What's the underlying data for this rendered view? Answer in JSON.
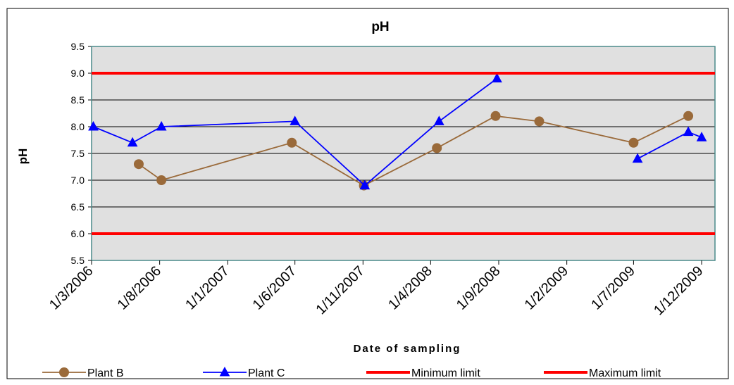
{
  "chart_data": {
    "type": "line",
    "title": "pH",
    "xlabel": "Date of sampling",
    "ylabel": "pH",
    "ylim": [
      5.5,
      9.5
    ],
    "yticks": [
      "5.5",
      "6.0",
      "6.5",
      "7.0",
      "7.5",
      "8.0",
      "8.5",
      "9.0",
      "9.5"
    ],
    "xticks": [
      {
        "label": "1/3/2006",
        "date": "2006-03-01"
      },
      {
        "label": "1/8/2006",
        "date": "2006-08-01"
      },
      {
        "label": "1/1/2007",
        "date": "2007-01-01"
      },
      {
        "label": "1/6/2007",
        "date": "2007-06-01"
      },
      {
        "label": "1/11/2007",
        "date": "2007-11-01"
      },
      {
        "label": "1/4/2008",
        "date": "2008-04-01"
      },
      {
        "label": "1/9/2008",
        "date": "2008-09-01"
      },
      {
        "label": "1/2/2009",
        "date": "2009-02-01"
      },
      {
        "label": "1/7/2009",
        "date": "2009-07-01"
      },
      {
        "label": "1/12/2009",
        "date": "2009-12-01"
      }
    ],
    "xlim": [
      "2006-03-01",
      "2009-12-31"
    ],
    "grid": true,
    "legend_position": "bottom",
    "plot_background": "#e0e0e0",
    "series": [
      {
        "name": "Plant B",
        "color": "#9a6a3a",
        "marker": "circle",
        "points": [
          {
            "x": "2006-06-15",
            "y": 7.3
          },
          {
            "x": "2006-08-05",
            "y": 7.0
          },
          {
            "x": "2007-05-25",
            "y": 7.7
          },
          {
            "x": "2007-11-03",
            "y": 6.9
          },
          {
            "x": "2008-04-15",
            "y": 7.6
          },
          {
            "x": "2008-08-25",
            "y": 8.2
          },
          {
            "x": "2008-12-01",
            "y": 8.1
          },
          {
            "x": "2009-07-01",
            "y": 7.7
          },
          {
            "x": "2009-11-01",
            "y": 8.2
          }
        ]
      },
      {
        "name": "Plant C",
        "color": "#0000ff",
        "marker": "triangle",
        "points": [
          {
            "x": "2006-03-05",
            "y": 8.0
          },
          {
            "x": "2006-06-01",
            "y": 7.7
          },
          {
            "x": "2006-08-05",
            "y": 8.0
          },
          {
            "x": "2007-06-01",
            "y": 8.1
          },
          {
            "x": "2007-11-05",
            "y": 6.9
          },
          {
            "x": "2008-04-20",
            "y": 8.1
          },
          {
            "x": "2008-08-28",
            "y": 8.9
          },
          {
            "x": "2009-07-10",
            "y": 7.4
          },
          {
            "x": "2009-11-01",
            "y": 7.9
          },
          {
            "x": "2009-12-01",
            "y": 7.8
          }
        ],
        "gap_after_index": 6
      },
      {
        "name": "Minimum limit",
        "color": "#ff0000",
        "marker": "none",
        "points": [
          {
            "x": "2006-03-01",
            "y": 6.0
          },
          {
            "x": "2009-12-31",
            "y": 6.0
          }
        ]
      },
      {
        "name": "Maximum limit",
        "color": "#ff0000",
        "marker": "none",
        "points": [
          {
            "x": "2006-03-01",
            "y": 9.0
          },
          {
            "x": "2009-12-31",
            "y": 9.0
          }
        ]
      }
    ]
  }
}
